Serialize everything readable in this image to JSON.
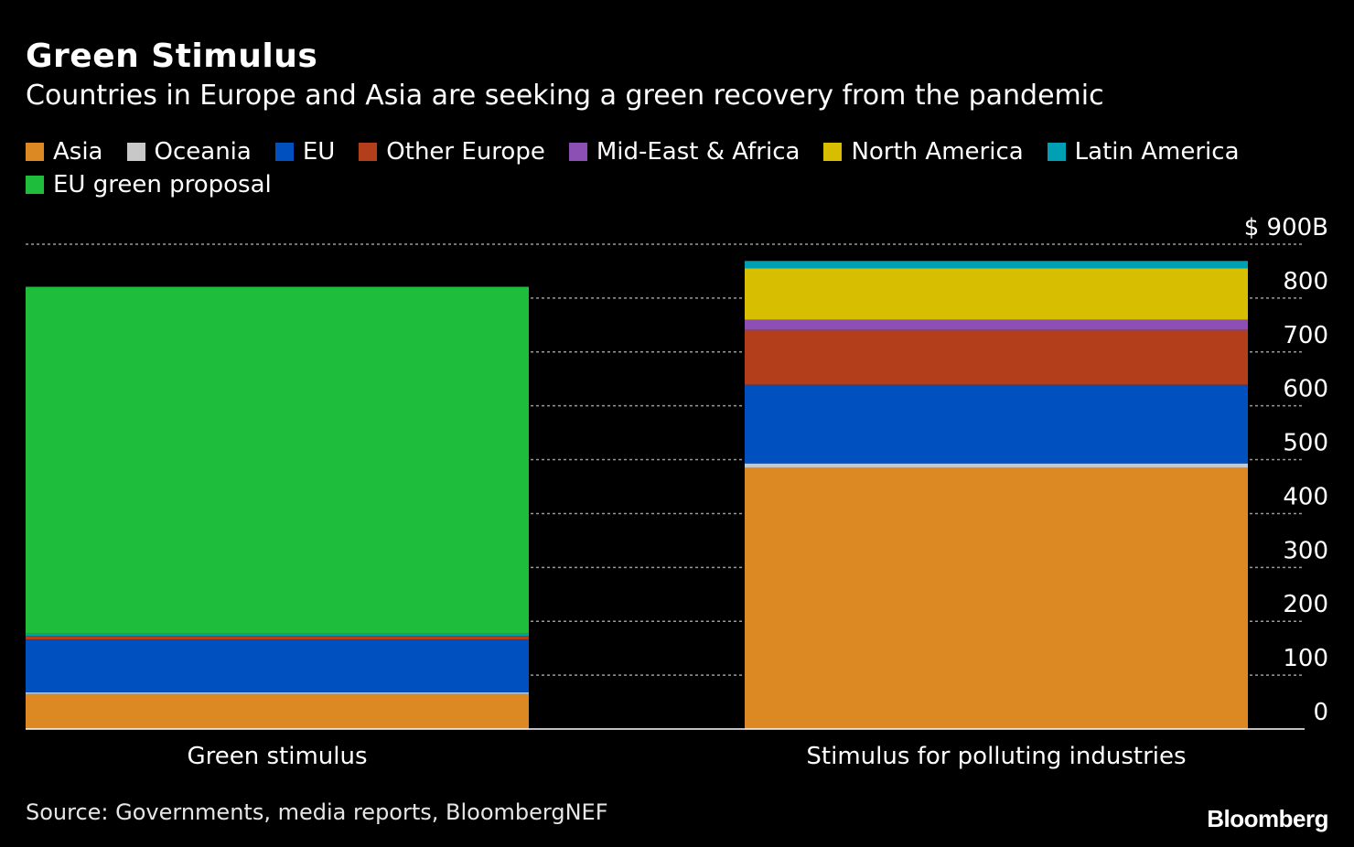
{
  "header": {
    "title": "Green Stimulus",
    "subtitle": "Countries in Europe and Asia are seeking a green recovery from the pandemic"
  },
  "legend": [
    {
      "label": "Asia",
      "color": "#dc8823"
    },
    {
      "label": "Oceania",
      "color": "#c8c8c8"
    },
    {
      "label": "EU",
      "color": "#0050c0"
    },
    {
      "label": "Other Europe",
      "color": "#b23e1c"
    },
    {
      "label": "Mid-East & Africa",
      "color": "#8c50b4"
    },
    {
      "label": "North America",
      "color": "#d7be00"
    },
    {
      "label": "Latin America",
      "color": "#00a0b4"
    },
    {
      "label": "EU green proposal",
      "color": "#1ebe3c"
    }
  ],
  "chart_data": {
    "type": "bar",
    "stacked": true,
    "categories": [
      "Green stimulus",
      "Stimulus for polluting industries"
    ],
    "series": [
      {
        "name": "Asia",
        "color": "#dc8823",
        "values": [
          65,
          485
        ]
      },
      {
        "name": "Oceania",
        "color": "#c8c8c8",
        "values": [
          3,
          8
        ]
      },
      {
        "name": "EU",
        "color": "#0050c0",
        "values": [
          98,
          146
        ]
      },
      {
        "name": "Other Europe",
        "color": "#b23e1c",
        "values": [
          6,
          102
        ]
      },
      {
        "name": "Mid-East & Africa",
        "color": "#8c50b4",
        "values": [
          1,
          19
        ]
      },
      {
        "name": "North America",
        "color": "#d7be00",
        "values": [
          0,
          95
        ]
      },
      {
        "name": "Latin America",
        "color": "#00a0b4",
        "values": [
          4,
          14
        ]
      },
      {
        "name": "EU green proposal",
        "color": "#1ebe3c",
        "values": [
          644,
          0
        ]
      }
    ],
    "yticks": [
      0,
      100,
      200,
      300,
      400,
      500,
      600,
      700,
      800,
      900
    ],
    "ytick_labels": [
      "0",
      "100",
      "200",
      "300",
      "400",
      "500",
      "600",
      "700",
      "800",
      "$ 900B"
    ],
    "ylim": [
      0,
      900
    ],
    "grid": true,
    "axis_position": "right"
  },
  "footer": {
    "source": "Source: Governments, media reports, BloombergNEF",
    "logo": "Bloomberg"
  }
}
